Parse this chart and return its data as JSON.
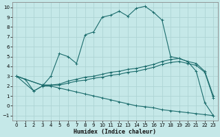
{
  "xlabel": "Humidex (Indice chaleur)",
  "bg_color": "#c5e8e8",
  "grid_color": "#aed4d4",
  "line_color": "#1a6b6b",
  "xlim": [
    -0.5,
    23.5
  ],
  "ylim": [
    -1.5,
    10.5
  ],
  "xticks": [
    0,
    1,
    2,
    3,
    4,
    5,
    6,
    7,
    8,
    9,
    10,
    11,
    12,
    13,
    14,
    15,
    16,
    17,
    18,
    19,
    20,
    21,
    22,
    23
  ],
  "yticks": [
    -1,
    0,
    1,
    2,
    3,
    4,
    5,
    6,
    7,
    8,
    9,
    10
  ],
  "line1_x": [
    0,
    1,
    2,
    3,
    4,
    5,
    6,
    7,
    8,
    9,
    10,
    11,
    12,
    13,
    14,
    15,
    16,
    17,
    18,
    19,
    20,
    21,
    22,
    23
  ],
  "line1_y": [
    3.0,
    2.7,
    1.5,
    2.0,
    3.0,
    5.3,
    5.0,
    4.3,
    7.2,
    7.5,
    9.0,
    9.2,
    9.6,
    9.1,
    9.9,
    10.1,
    9.5,
    8.7,
    5.0,
    4.8,
    4.5,
    3.5,
    0.3,
    -1.0
  ],
  "line2_x": [
    0,
    3,
    4,
    5,
    6,
    7,
    8,
    9,
    10,
    11,
    12,
    13,
    14,
    15,
    16,
    17,
    18,
    19,
    20,
    21,
    22,
    23
  ],
  "line2_y": [
    3.0,
    2.1,
    2.1,
    2.2,
    2.5,
    2.7,
    2.9,
    3.0,
    3.2,
    3.4,
    3.5,
    3.7,
    3.8,
    4.0,
    4.2,
    4.5,
    4.7,
    4.8,
    4.5,
    4.3,
    3.5,
    1.0
  ],
  "line3_x": [
    0,
    3,
    4,
    5,
    6,
    7,
    8,
    9,
    10,
    11,
    12,
    13,
    14,
    15,
    16,
    17,
    18,
    19,
    20,
    21,
    22,
    23
  ],
  "line3_y": [
    3.0,
    2.1,
    2.1,
    2.1,
    2.3,
    2.5,
    2.6,
    2.8,
    2.9,
    3.1,
    3.2,
    3.4,
    3.5,
    3.7,
    3.9,
    4.2,
    4.4,
    4.5,
    4.3,
    4.1,
    3.4,
    0.8
  ],
  "line4_x": [
    0,
    2,
    3,
    4,
    5,
    6,
    7,
    8,
    9,
    10,
    11,
    12,
    13,
    14,
    15,
    16,
    17,
    18,
    19,
    20,
    21,
    22,
    23
  ],
  "line4_y": [
    3.0,
    1.5,
    2.0,
    2.0,
    1.8,
    1.6,
    1.4,
    1.2,
    1.0,
    0.8,
    0.6,
    0.4,
    0.2,
    0.0,
    -0.1,
    -0.2,
    -0.4,
    -0.5,
    -0.6,
    -0.7,
    -0.8,
    -0.9,
    -1.0
  ]
}
